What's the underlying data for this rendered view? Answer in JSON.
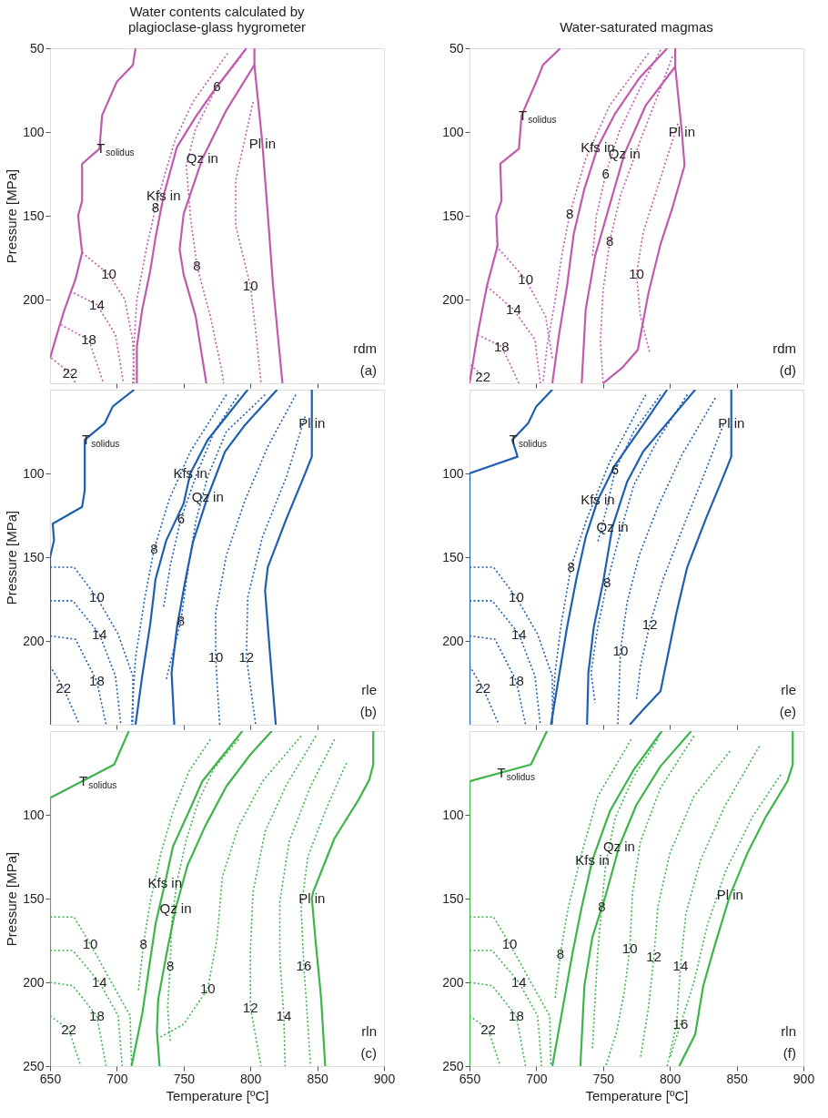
{
  "chart_data": [
    {
      "type": "line",
      "title": "Water contents calculated by\nplagioclase-glass hygrometer",
      "ylabel": "Pressure [MPa]",
      "xlim": [
        650,
        900
      ],
      "ylim": [
        250,
        50
      ],
      "xticks": [
        700,
        750,
        800,
        850
      ],
      "yticks": [
        50,
        100,
        150,
        200
      ],
      "tick_labels": "y",
      "series": [
        {
          "color": "#c05aae",
          "line_style": "solid",
          "x": [
            714,
            712,
            700,
            689,
            687,
            674,
            674,
            671,
            674,
            669,
            660,
            654,
            650
          ],
          "values": [
            50,
            60,
            70,
            90,
            110,
            119,
            141,
            150,
            172,
            188,
            208,
            224,
            235
          ]
        },
        {
          "color": "#c05aae",
          "line_style": "solid",
          "x": [
            797,
            773,
            759,
            745,
            735,
            729,
            725,
            719,
            715,
            715
          ],
          "values": [
            50,
            75,
            91,
            109,
            138,
            163,
            183,
            206,
            228,
            250
          ]
        },
        {
          "color": "#c05aae",
          "line_style": "solid",
          "x": [
            803,
            782,
            764,
            750,
            747,
            750,
            759,
            767
          ],
          "values": [
            60,
            87,
            116,
            149,
            170,
            185,
            210,
            250
          ]
        },
        {
          "color": "#c05aae",
          "line_style": "solid",
          "x": [
            803,
            803,
            809,
            813,
            817,
            824
          ],
          "values": [
            50,
            60,
            107,
            149,
            192,
            250
          ]
        },
        {
          "color": "#c05aae",
          "line_style": "dotted",
          "x": [
            783,
            757,
            744,
            736,
            729,
            722,
            715,
            713,
            712
          ],
          "values": [
            53,
            82,
            104,
            125,
            145,
            170,
            200,
            225,
            250
          ]
        },
        {
          "color": "#c05aae",
          "line_style": "dotted",
          "x": [
            793,
            775,
            759,
            752,
            755,
            760,
            770,
            778,
            780
          ],
          "values": [
            55,
            73,
            98,
            120,
            150,
            180,
            210,
            240,
            250
          ]
        },
        {
          "color": "#c05aae",
          "line_style": "dotted",
          "x": [
            802,
            789,
            789,
            800,
            804,
            808
          ],
          "values": [
            82,
            129,
            156,
            192,
            219,
            250
          ]
        },
        {
          "color": "#c05aae",
          "line_style": "dotted",
          "x": [
            674,
            694,
            706,
            712,
            713
          ],
          "values": [
            172,
            185,
            200,
            225,
            250
          ]
        },
        {
          "color": "#c05aae",
          "line_style": "dotted",
          "x": [
            665,
            685,
            699,
            705
          ],
          "values": [
            195,
            203,
            221,
            250
          ]
        },
        {
          "color": "#c05aae",
          "line_style": "dotted",
          "x": [
            658,
            679,
            690
          ],
          "values": [
            215,
            224,
            250
          ]
        },
        {
          "color": "#c05aae",
          "line_style": "dotted",
          "x": [
            651,
            665,
            669
          ],
          "values": [
            235,
            244,
            250
          ]
        }
      ],
      "annotations": [
        {
          "text": "T$_{solidus}$",
          "x": 687,
          "y": 110
        },
        {
          "text": "Kfs in",
          "x": 735,
          "y": 138
        },
        {
          "text": "Qz in",
          "x": 764,
          "y": 116
        },
        {
          "text": "Pl in",
          "x": 809,
          "y": 107
        },
        {
          "text": "6",
          "x": 775,
          "y": 73
        },
        {
          "text": "8",
          "x": 729,
          "y": 145
        },
        {
          "text": "8",
          "x": 760,
          "y": 180
        },
        {
          "text": "10",
          "x": 800,
          "y": 192
        },
        {
          "text": "10",
          "x": 694,
          "y": 185
        },
        {
          "text": "14",
          "x": 685,
          "y": 203
        },
        {
          "text": "18",
          "x": 679,
          "y": 224
        },
        {
          "text": "22",
          "x": 665,
          "y": 244
        },
        "rdm",
        "(a)"
      ]
    },
    {
      "type": "line",
      "ylabel": "Pressure [MPa]",
      "xlim": [
        650,
        900
      ],
      "ylim": [
        250,
        50
      ],
      "xticks": [
        700,
        750,
        800,
        850
      ],
      "yticks": [
        100,
        150,
        200
      ],
      "tick_labels": "y",
      "series": [
        {
          "color": "#1e5fb2",
          "line_style": "solid",
          "x": [
            713,
            697,
            691,
            676,
            676,
            674,
            652,
            653,
            650,
            650
          ],
          "values": [
            50,
            60,
            70,
            80,
            110,
            120,
            130,
            140,
            150,
            250
          ]
        },
        {
          "color": "#1e5fb2",
          "line_style": "solid",
          "x": [
            798,
            768,
            755,
            750,
            737,
            729,
            725,
            719,
            714
          ],
          "values": [
            50,
            80,
            100,
            118,
            140,
            163,
            190,
            221,
            250
          ]
        },
        {
          "color": "#1e5fb2",
          "line_style": "solid",
          "x": [
            820,
            796,
            781,
            768,
            757,
            751,
            745,
            741,
            743
          ],
          "values": [
            50,
            71,
            87,
            114,
            141,
            165,
            192,
            219,
            250
          ]
        },
        {
          "color": "#1e5fb2",
          "line_style": "solid",
          "x": [
            846,
            846,
            840,
            827,
            813,
            811,
            814,
            819
          ],
          "values": [
            50,
            90,
            102,
            127,
            156,
            170,
            201,
            250
          ]
        },
        {
          "color": "#1e5fb2",
          "line_style": "dotted",
          "x": [
            782,
            755,
            739,
            728,
            721,
            714,
            712,
            711
          ],
          "values": [
            53,
            87,
            116,
            145,
            174,
            210,
            235,
            250
          ]
        },
        {
          "color": "#1e5fb2",
          "line_style": "dotted",
          "x": [
            791,
            773,
            760,
            748,
            740,
            735
          ],
          "values": [
            53,
            75,
            100,
            127,
            155,
            180
          ]
        },
        {
          "color": "#1e5fb2",
          "line_style": "dotted",
          "x": [
            811,
            782,
            768,
            759,
            753,
            748,
            741,
            737
          ],
          "values": [
            53,
            75,
            102,
            129,
            159,
            188,
            210,
            223
          ]
        },
        {
          "color": "#1e5fb2",
          "line_style": "dotted",
          "x": [
            834,
            813,
            796,
            782,
            774,
            774,
            777
          ],
          "values": [
            53,
            84,
            116,
            149,
            183,
            210,
            250
          ]
        },
        {
          "color": "#1e5fb2",
          "line_style": "dotted",
          "x": [
            841,
            827,
            809,
            798,
            797,
            804
          ],
          "values": [
            66,
            102,
            138,
            174,
            210,
            250
          ]
        },
        {
          "color": "#1e5fb2",
          "line_style": "dotted",
          "x": [
            650,
            668,
            685,
            701,
            712,
            712
          ],
          "values": [
            156,
            156,
            174,
            196,
            221,
            250
          ]
        },
        {
          "color": "#1e5fb2",
          "line_style": "dotted",
          "x": [
            650,
            667,
            687,
            699,
            703
          ],
          "values": [
            176,
            176,
            196,
            221,
            250
          ]
        },
        {
          "color": "#1e5fb2",
          "line_style": "dotted",
          "x": [
            650,
            669,
            685,
            692
          ],
          "values": [
            197,
            199,
            224,
            250
          ]
        },
        {
          "color": "#1e5fb2",
          "line_style": "dotted",
          "x": [
            650,
            660,
            672
          ],
          "values": [
            215,
            228,
            250
          ]
        }
      ],
      "annotations": [
        {
          "text": "T$_{solidus}$",
          "x": 676,
          "y": 80
        },
        {
          "text": "Kfs in",
          "x": 755,
          "y": 100
        },
        {
          "text": "Qz in",
          "x": 768,
          "y": 114
        },
        {
          "text": "Pl in",
          "x": 846,
          "y": 70
        },
        {
          "text": "6",
          "x": 748,
          "y": 127
        },
        {
          "text": "8",
          "x": 728,
          "y": 145
        },
        {
          "text": "8",
          "x": 748,
          "y": 188
        },
        {
          "text": "10",
          "x": 774,
          "y": 210
        },
        {
          "text": "12",
          "x": 797,
          "y": 210
        },
        {
          "text": "10",
          "x": 685,
          "y": 174
        },
        {
          "text": "14",
          "x": 687,
          "y": 196
        },
        {
          "text": "18",
          "x": 685,
          "y": 224
        },
        {
          "text": "22",
          "x": 660,
          "y": 228
        },
        "rle",
        "(b)"
      ]
    },
    {
      "type": "line",
      "xlabel": "Temperature [ºC]",
      "ylabel": "Pressure [MPa]",
      "xlim": [
        650,
        900
      ],
      "ylim": [
        250,
        50
      ],
      "xticks": [
        650,
        700,
        750,
        800,
        850,
        900
      ],
      "yticks": [
        100,
        150,
        200,
        250
      ],
      "series": [
        {
          "color": "#3db54a",
          "line_style": "solid",
          "x": [
            709,
            698,
            650,
            650
          ],
          "values": [
            50,
            70,
            90,
            250
          ]
        },
        {
          "color": "#3db54a",
          "line_style": "solid",
          "x": [
            794,
            780,
            764,
            754,
            742,
            736,
            729,
            724,
            719,
            711
          ],
          "values": [
            50,
            64,
            80,
            98,
            119,
            141,
            165,
            192,
            219,
            250
          ]
        },
        {
          "color": "#3db54a",
          "line_style": "solid",
          "x": [
            816,
            800,
            782,
            766,
            753,
            744,
            737,
            731,
            730,
            732
          ],
          "values": [
            50,
            64,
            83,
            107,
            130,
            156,
            184,
            210,
            229,
            250
          ]
        },
        {
          "color": "#3db54a",
          "line_style": "solid",
          "x": [
            892,
            892,
            889,
            881,
            863,
            847,
            846,
            849,
            853,
            856
          ],
          "values": [
            50,
            70,
            79,
            91,
            114,
            146,
            150,
            177,
            210,
            250
          ]
        },
        {
          "color": "#3db54a",
          "line_style": "dotted",
          "x": [
            770,
            754,
            742,
            733,
            725,
            720,
            716
          ],
          "values": [
            55,
            74,
            98,
            123,
            152,
            177,
            206
          ]
        },
        {
          "color": "#3db54a",
          "line_style": "dotted",
          "x": [
            791,
            773,
            761,
            752,
            745,
            741,
            740,
            738,
            740
          ],
          "values": [
            55,
            72,
            92,
            115,
            140,
            165,
            190,
            215,
            235
          ]
        },
        {
          "color": "#3db54a",
          "line_style": "dotted",
          "x": [
            838,
            809,
            791,
            779,
            775,
            768,
            750,
            732
          ],
          "values": [
            53,
            80,
            107,
            137,
            174,
            204,
            225,
            233
          ]
        },
        {
          "color": "#3db54a",
          "line_style": "dotted",
          "x": [
            849,
            827,
            811,
            802,
            800,
            800,
            808
          ],
          "values": [
            53,
            82,
            110,
            146,
            180,
            215,
            250
          ]
        },
        {
          "color": "#3db54a",
          "line_style": "dotted",
          "x": [
            863,
            845,
            829,
            822,
            822,
            825,
            826
          ],
          "values": [
            55,
            83,
            116,
            152,
            185,
            220,
            250
          ]
        },
        {
          "color": "#3db54a",
          "line_style": "dotted",
          "x": [
            872,
            858,
            843,
            838,
            840,
            843,
            845
          ],
          "values": [
            69,
            94,
            125,
            156,
            190,
            225,
            250
          ]
        },
        {
          "color": "#3db54a",
          "line_style": "dotted",
          "x": [
            650,
            668,
            680,
            696,
            710,
            711
          ],
          "values": [
            161,
            161,
            177,
            200,
            220,
            250
          ]
        },
        {
          "color": "#3db54a",
          "line_style": "dotted",
          "x": [
            650,
            667,
            687,
            701,
            704
          ],
          "values": [
            181,
            181,
            200,
            220,
            250
          ]
        },
        {
          "color": "#3db54a",
          "line_style": "dotted",
          "x": [
            650,
            667,
            685,
            692
          ],
          "values": [
            200,
            202,
            220,
            250
          ]
        },
        {
          "color": "#3db54a",
          "line_style": "dotted",
          "x": [
            650,
            664,
            673
          ],
          "values": [
            220,
            228,
            250
          ]
        }
      ],
      "annotations": [
        {
          "text": "T$_{solidus}$",
          "x": 674,
          "y": 80
        },
        {
          "text": "Kfs in",
          "x": 736,
          "y": 141
        },
        {
          "text": "Qz in",
          "x": 744,
          "y": 156
        },
        {
          "text": "Pl in",
          "x": 846,
          "y": 150
        },
        {
          "text": "8",
          "x": 720,
          "y": 177
        },
        {
          "text": "8",
          "x": 740,
          "y": 190
        },
        {
          "text": "10",
          "x": 768,
          "y": 204
        },
        {
          "text": "12",
          "x": 800,
          "y": 215
        },
        {
          "text": "14",
          "x": 825,
          "y": 220
        },
        {
          "text": "16",
          "x": 840,
          "y": 190
        },
        {
          "text": "10",
          "x": 680,
          "y": 177
        },
        {
          "text": "14",
          "x": 687,
          "y": 200
        },
        {
          "text": "18",
          "x": 685,
          "y": 220
        },
        {
          "text": "22",
          "x": 664,
          "y": 228
        },
        "rln",
        "(c)"
      ]
    },
    {
      "type": "line",
      "title": "Water-saturated magmas",
      "xlim": [
        650,
        900
      ],
      "ylim": [
        250,
        50
      ],
      "xticks": [
        700,
        750,
        800,
        850
      ],
      "yticks": [
        50,
        100,
        150,
        200
      ],
      "tick_labels": "y",
      "series": [
        {
          "color": "#c05aae",
          "line_style": "solid",
          "x": [
            718,
            705,
            700,
            689,
            687,
            673,
            674,
            670,
            671,
            663,
            656,
            650
          ],
          "values": [
            50,
            60,
            70,
            90,
            110,
            119,
            141,
            150,
            168,
            192,
            221,
            250
          ]
        },
        {
          "color": "#c05aae",
          "line_style": "solid",
          "x": [
            798,
            777,
            759,
            746,
            736,
            728,
            723,
            717,
            712
          ],
          "values": [
            50,
            68,
            89,
            109,
            134,
            161,
            192,
            221,
            250
          ]
        },
        {
          "color": "#c05aae",
          "line_style": "solid",
          "x": [
            804,
            782,
            766,
            753,
            744,
            737,
            734
          ],
          "values": [
            61,
            84,
            113,
            149,
            174,
            206,
            250
          ]
        },
        {
          "color": "#c05aae",
          "line_style": "solid",
          "x": [
            804,
            804,
            809,
            811,
            802,
            793,
            784,
            776,
            764,
            750
          ],
          "values": [
            50,
            61,
            100,
            120,
            145,
            167,
            196,
            230,
            241,
            250
          ]
        },
        {
          "color": "#c05aae",
          "line_style": "dotted",
          "x": [
            784,
            755,
            737,
            725,
            719,
            714,
            708,
            705
          ],
          "values": [
            53,
            84,
            116,
            149,
            174,
            201,
            228,
            250
          ]
        },
        {
          "color": "#c05aae",
          "line_style": "dotted",
          "x": [
            793,
            777,
            762,
            752,
            745,
            742
          ],
          "values": [
            51,
            75,
            100,
            125,
            150,
            175
          ]
        },
        {
          "color": "#c05aae",
          "line_style": "dotted",
          "x": [
            802,
            791,
            777,
            763,
            755,
            750,
            748,
            750
          ],
          "values": [
            55,
            78,
            107,
            138,
            165,
            195,
            225,
            250
          ]
        },
        {
          "color": "#c05aae",
          "line_style": "dotted",
          "x": [
            806,
            792,
            780,
            775,
            778,
            785
          ],
          "values": [
            95,
            130,
            160,
            185,
            210,
            232
          ]
        },
        {
          "color": "#c05aae",
          "line_style": "dotted",
          "x": [
            670,
            692,
            707,
            712
          ],
          "values": [
            168,
            188,
            210,
            235
          ]
        },
        {
          "color": "#c05aae",
          "line_style": "dotted",
          "x": [
            663,
            683,
            699,
            703
          ],
          "values": [
            192,
            206,
            224,
            250
          ]
        },
        {
          "color": "#c05aae",
          "line_style": "dotted",
          "x": [
            656,
            674,
            687
          ],
          "values": [
            221,
            228,
            250
          ]
        },
        {
          "color": "#c05aae",
          "line_style": "dotted",
          "x": [
            651,
            660
          ],
          "values": [
            239,
            246
          ]
        }
      ],
      "annotations": [
        {
          "text": "T$_{solidus}$",
          "x": 689,
          "y": 90
        },
        {
          "text": "Kfs in",
          "x": 746,
          "y": 109
        },
        {
          "text": "Qz in",
          "x": 766,
          "y": 113
        },
        {
          "text": "Pl in",
          "x": 809,
          "y": 100
        },
        {
          "text": "6",
          "x": 752,
          "y": 125
        },
        {
          "text": "8",
          "x": 725,
          "y": 149
        },
        {
          "text": "8",
          "x": 755,
          "y": 165
        },
        {
          "text": "10",
          "x": 775,
          "y": 185
        },
        {
          "text": "10",
          "x": 692,
          "y": 188
        },
        {
          "text": "14",
          "x": 683,
          "y": 206
        },
        {
          "text": "18",
          "x": 674,
          "y": 228
        },
        {
          "text": "22",
          "x": 660,
          "y": 246
        },
        "rdm",
        "(d)"
      ]
    },
    {
      "type": "line",
      "xlim": [
        650,
        900
      ],
      "ylim": [
        250,
        50
      ],
      "xticks": [
        700,
        750,
        800,
        850
      ],
      "yticks": [
        100,
        150,
        200
      ],
      "tick_labels": "y",
      "series": [
        {
          "color": "#1e5fb2",
          "line_style": "solid",
          "x": [
            712,
            700,
            694,
            682,
            686,
            650,
            650
          ],
          "values": [
            50,
            60,
            70,
            80,
            90,
            100,
            250
          ]
        },
        {
          "color": "#1e5fb2",
          "line_style": "solid",
          "x": [
            798,
            780,
            759,
            746,
            737,
            730,
            723,
            717,
            711
          ],
          "values": [
            50,
            71,
            95,
            116,
            138,
            163,
            192,
            221,
            250
          ]
        },
        {
          "color": "#1e5fb2",
          "line_style": "solid",
          "x": [
            819,
            800,
            780,
            768,
            757,
            750,
            743,
            739,
            738
          ],
          "values": [
            50,
            68,
            87,
            105,
            132,
            165,
            192,
            219,
            250
          ]
        },
        {
          "color": "#1e5fb2",
          "line_style": "solid",
          "x": [
            846,
            846,
            840,
            827,
            813,
            805,
            793,
            780,
            770
          ],
          "values": [
            50,
            90,
            102,
            127,
            156,
            183,
            230,
            241,
            250
          ]
        },
        {
          "color": "#1e5fb2",
          "line_style": "dotted",
          "x": [
            782,
            755,
            737,
            726,
            719,
            714,
            712
          ],
          "values": [
            53,
            93,
            129,
            156,
            188,
            219,
            250
          ]
        },
        {
          "color": "#1e5fb2",
          "line_style": "dotted",
          "x": [
            793,
            773,
            759,
            753,
            746
          ],
          "values": [
            53,
            75,
            98,
            120,
            141
          ]
        },
        {
          "color": "#1e5fb2",
          "line_style": "dotted",
          "x": [
            813,
            791,
            773,
            762,
            753,
            746,
            741,
            744
          ],
          "values": [
            53,
            80,
            107,
            138,
            165,
            192,
            219,
            237
          ]
        },
        {
          "color": "#1e5fb2",
          "line_style": "dotted",
          "x": [
            834,
            809,
            791,
            777,
            768,
            763,
            761
          ],
          "values": [
            55,
            89,
            120,
            149,
            177,
            206,
            250
          ]
        },
        {
          "color": "#1e5fb2",
          "line_style": "dotted",
          "x": [
            840,
            825,
            809,
            795,
            785,
            778,
            775
          ],
          "values": [
            71,
            102,
            134,
            163,
            190,
            215,
            235
          ]
        },
        {
          "color": "#1e5fb2",
          "line_style": "dotted",
          "x": [
            650,
            668,
            685,
            701,
            712,
            712
          ],
          "values": [
            156,
            156,
            174,
            196,
            221,
            250
          ]
        },
        {
          "color": "#1e5fb2",
          "line_style": "dotted",
          "x": [
            650,
            667,
            687,
            699,
            703
          ],
          "values": [
            176,
            176,
            196,
            221,
            250
          ]
        },
        {
          "color": "#1e5fb2",
          "line_style": "dotted",
          "x": [
            650,
            669,
            685,
            692
          ],
          "values": [
            197,
            199,
            224,
            250
          ]
        },
        {
          "color": "#1e5fb2",
          "line_style": "dotted",
          "x": [
            650,
            660,
            672
          ],
          "values": [
            215,
            228,
            250
          ]
        }
      ],
      "annotations": [
        {
          "text": "T$_{solidus}$",
          "x": 682,
          "y": 80
        },
        {
          "text": "Kfs in",
          "x": 746,
          "y": 116
        },
        {
          "text": "Qz in",
          "x": 757,
          "y": 132
        },
        {
          "text": "Pl in",
          "x": 846,
          "y": 70
        },
        {
          "text": "6",
          "x": 759,
          "y": 98
        },
        {
          "text": "8",
          "x": 726,
          "y": 156
        },
        {
          "text": "8",
          "x": 753,
          "y": 165
        },
        {
          "text": "12",
          "x": 785,
          "y": 190
        },
        {
          "text": "10",
          "x": 763,
          "y": 206
        },
        {
          "text": "10",
          "x": 685,
          "y": 174
        },
        {
          "text": "14",
          "x": 687,
          "y": 196
        },
        {
          "text": "18",
          "x": 685,
          "y": 224
        },
        {
          "text": "22",
          "x": 660,
          "y": 228
        },
        "rle",
        "(e)"
      ]
    },
    {
      "type": "line",
      "xlabel": "Temperature [ºC]",
      "xlim": [
        650,
        900
      ],
      "ylim": [
        250,
        50
      ],
      "xticks": [
        650,
        700,
        750,
        800,
        850,
        900
      ],
      "yticks": [
        100,
        150,
        200,
        250
      ],
      "series": [
        {
          "color": "#3db54a",
          "line_style": "solid",
          "x": [
            708,
            696,
            650,
            650
          ],
          "values": [
            50,
            70,
            80,
            250
          ]
        },
        {
          "color": "#3db54a",
          "line_style": "solid",
          "x": [
            794,
            773,
            755,
            742,
            734,
            727,
            721,
            712
          ],
          "values": [
            50,
            73,
            98,
            127,
            155,
            183,
            210,
            250
          ]
        },
        {
          "color": "#3db54a",
          "line_style": "solid",
          "x": [
            816,
            793,
            775,
            762,
            752,
            742,
            736,
            733
          ],
          "values": [
            50,
            71,
            94,
            119,
            148,
            173,
            202,
            250
          ]
        },
        {
          "color": "#3db54a",
          "line_style": "solid",
          "x": [
            892,
            892,
            888,
            872,
            858,
            845,
            834,
            825,
            819,
            807
          ],
          "values": [
            50,
            70,
            80,
            101,
            123,
            148,
            177,
            202,
            231,
            250
          ]
        },
        {
          "color": "#3db54a",
          "line_style": "dotted",
          "x": [
            771,
            746,
            734,
            724,
            718,
            714
          ],
          "values": [
            55,
            89,
            123,
            155,
            183,
            210
          ]
        },
        {
          "color": "#3db54a",
          "line_style": "dotted",
          "x": [
            791,
            773,
            759,
            752,
            749,
            746,
            744,
            742
          ],
          "values": [
            55,
            77,
            102,
            129,
            155,
            182,
            210,
            240
          ]
        },
        {
          "color": "#3db54a",
          "line_style": "dotted",
          "x": [
            818,
            793,
            778,
            772,
            770,
            766,
            760,
            752
          ],
          "values": [
            53,
            84,
            116,
            147,
            180,
            205,
            230,
            250
          ]
        },
        {
          "color": "#3db54a",
          "line_style": "dotted",
          "x": [
            845,
            818,
            800,
            791,
            788,
            784,
            778
          ],
          "values": [
            62,
            89,
            123,
            155,
            185,
            215,
            245
          ]
        },
        {
          "color": "#3db54a",
          "line_style": "dotted",
          "x": [
            867,
            841,
            823,
            812,
            808,
            805,
            798
          ],
          "values": [
            59,
            95,
            127,
            159,
            190,
            225,
            250
          ]
        },
        {
          "color": "#3db54a",
          "line_style": "dotted",
          "x": [
            883,
            862,
            842,
            828,
            818,
            808,
            800
          ],
          "values": [
            76,
            101,
            133,
            166,
            200,
            225,
            245
          ]
        },
        {
          "color": "#3db54a",
          "line_style": "dotted",
          "x": [
            650,
            668,
            680,
            696,
            710,
            711
          ],
          "values": [
            161,
            161,
            177,
            200,
            220,
            250
          ]
        },
        {
          "color": "#3db54a",
          "line_style": "dotted",
          "x": [
            650,
            667,
            687,
            701,
            704
          ],
          "values": [
            181,
            181,
            200,
            220,
            250
          ]
        },
        {
          "color": "#3db54a",
          "line_style": "dotted",
          "x": [
            650,
            667,
            685,
            692
          ],
          "values": [
            200,
            202,
            220,
            250
          ]
        },
        {
          "color": "#3db54a",
          "line_style": "dotted",
          "x": [
            650,
            664,
            673
          ],
          "values": [
            220,
            228,
            250
          ]
        }
      ],
      "annotations": [
        {
          "text": "T$_{solidus}$",
          "x": 673,
          "y": 75
        },
        {
          "text": "Kfs in",
          "x": 742,
          "y": 127
        },
        {
          "text": "Qz in",
          "x": 762,
          "y": 119
        },
        {
          "text": "Pl in",
          "x": 845,
          "y": 148
        },
        {
          "text": "8",
          "x": 718,
          "y": 183
        },
        {
          "text": "8",
          "x": 749,
          "y": 155
        },
        {
          "text": "10",
          "x": 770,
          "y": 180
        },
        {
          "text": "12",
          "x": 788,
          "y": 185
        },
        {
          "text": "14",
          "x": 808,
          "y": 190
        },
        {
          "text": "16",
          "x": 808,
          "y": 225
        },
        {
          "text": "10",
          "x": 680,
          "y": 177
        },
        {
          "text": "14",
          "x": 687,
          "y": 200
        },
        {
          "text": "18",
          "x": 685,
          "y": 220
        },
        {
          "text": "22",
          "x": 664,
          "y": 228
        },
        "rln",
        "(f)"
      ]
    }
  ]
}
